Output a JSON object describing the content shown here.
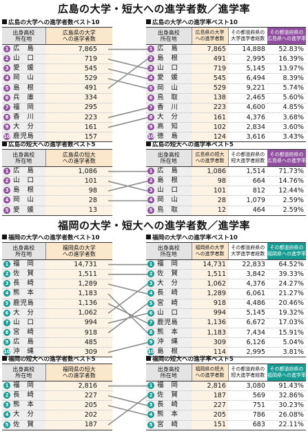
{
  "colors": {
    "hiroshima": "#8f4f9e",
    "fukuoka": "#169a92",
    "header_highlight": "#fbe8cc"
  },
  "hiroshima": {
    "title": "広島の大学・短大への進学者数／進学率",
    "univ_count": {
      "title": "広島の大学への進学者数ベスト10",
      "headers": [
        "出身高校\n所在地",
        "広島県の大学\nへの進学者数"
      ],
      "rows": [
        {
          "n": "1",
          "pref": "広島",
          "count": "7,865"
        },
        {
          "n": "2",
          "pref": "山口",
          "count": "719"
        },
        {
          "n": "3",
          "pref": "愛媛",
          "count": "545"
        },
        {
          "n": "4",
          "pref": "岡山",
          "count": "529"
        },
        {
          "n": "5",
          "pref": "島根",
          "count": "491"
        },
        {
          "n": "6",
          "pref": "兵庫",
          "count": "334"
        },
        {
          "n": "7",
          "pref": "福岡",
          "count": "295"
        },
        {
          "n": "8",
          "pref": "香川",
          "count": "223"
        },
        {
          "n": "9",
          "pref": "大分",
          "count": "161"
        },
        {
          "n": "10",
          "pref": "鹿児島",
          "count": "157"
        }
      ]
    },
    "univ_rate": {
      "title": "広島の大学への進学率ベスト10",
      "headers": [
        "出身高校\n所在地",
        "広島県の大学\nへの進学者数",
        "その都道府県の\n大学進学者総数",
        "その都道府県の\n広島県への進学率"
      ],
      "rows": [
        {
          "n": "1",
          "pref": "広島",
          "count": "7,865",
          "total": "14,888",
          "rate": "52.83%"
        },
        {
          "n": "2",
          "pref": "島根",
          "count": "491",
          "total": "2,995",
          "rate": "16.39%"
        },
        {
          "n": "3",
          "pref": "山口",
          "count": "719",
          "total": "5,145",
          "rate": "13.97%"
        },
        {
          "n": "4",
          "pref": "愛媛",
          "count": "545",
          "total": "6,494",
          "rate": "8.39%"
        },
        {
          "n": "5",
          "pref": "岡山",
          "count": "529",
          "total": "9,221",
          "rate": "5.74%"
        },
        {
          "n": "6",
          "pref": "鳥取",
          "count": "138",
          "total": "2,465",
          "rate": "5.60%"
        },
        {
          "n": "7",
          "pref": "香川",
          "count": "223",
          "total": "4,600",
          "rate": "4.85%"
        },
        {
          "n": "8",
          "pref": "大分",
          "count": "161",
          "total": "4,376",
          "rate": "3.68%"
        },
        {
          "n": "9",
          "pref": "高知",
          "count": "102",
          "total": "2,834",
          "rate": "3.60%"
        },
        {
          "n": "10",
          "pref": "徳島",
          "count": "124",
          "total": "3,616",
          "rate": "3.43%"
        }
      ]
    },
    "junior_count": {
      "title": "広島の短大への進学者数ベスト5",
      "headers": [
        "出身高校\n所在地",
        "広島県の短大\nへの進学者数"
      ],
      "rows": [
        {
          "n": "1",
          "pref": "広島",
          "count": "1,086"
        },
        {
          "n": "2",
          "pref": "山口",
          "count": "101"
        },
        {
          "n": "3",
          "pref": "島根",
          "count": "98"
        },
        {
          "n": "4",
          "pref": "岡山",
          "count": "28"
        },
        {
          "n": "5",
          "pref": "愛媛",
          "count": "13"
        }
      ]
    },
    "junior_rate": {
      "title": "広島の短大への進学率ベスト5",
      "headers": [
        "出身高校\n所在地",
        "広島県の短大\nへの進学者数",
        "その都道府県の\n短大進学者総数",
        "その都道府県の\n広島県への進学率"
      ],
      "rows": [
        {
          "n": "1",
          "pref": "広島",
          "count": "1,086",
          "total": "1,514",
          "rate": "71.73%"
        },
        {
          "n": "2",
          "pref": "島根",
          "count": "98",
          "total": "664",
          "rate": "14.76%"
        },
        {
          "n": "3",
          "pref": "山口",
          "count": "101",
          "total": "812",
          "rate": "12.44%"
        },
        {
          "n": "4",
          "pref": "岡山",
          "count": "28",
          "total": "1,079",
          "rate": "2.59%"
        },
        {
          "n": "5",
          "pref": "鳥取",
          "count": "12",
          "total": "464",
          "rate": "2.59%"
        }
      ]
    }
  },
  "fukuoka": {
    "title": "福岡の大学・短大への進学者数／進学率",
    "univ_count": {
      "title": "福岡の大学への進学者数ベスト10",
      "headers": [
        "出身高校\n所在地",
        "福岡県の大学\nへの進学者数"
      ],
      "rows": [
        {
          "n": "1",
          "pref": "福岡",
          "count": "14,731"
        },
        {
          "n": "2",
          "pref": "佐賀",
          "count": "1,511"
        },
        {
          "n": "3",
          "pref": "長崎",
          "count": "1,289"
        },
        {
          "n": "4",
          "pref": "熊本",
          "count": "1,183"
        },
        {
          "n": "5",
          "pref": "鹿児島",
          "count": "1,136"
        },
        {
          "n": "6",
          "pref": "大分",
          "count": "1,062"
        },
        {
          "n": "7",
          "pref": "山口",
          "count": "994"
        },
        {
          "n": "8",
          "pref": "宮崎",
          "count": "918"
        },
        {
          "n": "9",
          "pref": "広島",
          "count": "485"
        },
        {
          "n": "10",
          "pref": "沖縄",
          "count": "309"
        }
      ]
    },
    "univ_rate": {
      "title": "福岡の大学への進学率ベスト10",
      "headers": [
        "出身高校\n所在地",
        "福岡県の大学\nへの進学者数",
        "その都道府県の\n大学進学者総数",
        "その都道府県の\n福岡県への進学率"
      ],
      "rows": [
        {
          "n": "1",
          "pref": "福岡",
          "count": "14,731",
          "total": "22,833",
          "rate": "64.52%"
        },
        {
          "n": "2",
          "pref": "佐賀",
          "count": "1,511",
          "total": "3,842",
          "rate": "39.33%"
        },
        {
          "n": "3",
          "pref": "大分",
          "count": "1,062",
          "total": "4,376",
          "rate": "24.27%"
        },
        {
          "n": "4",
          "pref": "長崎",
          "count": "1,289",
          "total": "6,061",
          "rate": "21.27%"
        },
        {
          "n": "5",
          "pref": "宮崎",
          "count": "918",
          "total": "4,486",
          "rate": "20.46%"
        },
        {
          "n": "6",
          "pref": "山口",
          "count": "994",
          "total": "5,145",
          "rate": "19.32%"
        },
        {
          "n": "7",
          "pref": "鹿児島",
          "count": "1,136",
          "total": "6,672",
          "rate": "17.03%"
        },
        {
          "n": "8",
          "pref": "熊本",
          "count": "1,183",
          "total": "7,434",
          "rate": "15.91%"
        },
        {
          "n": "9",
          "pref": "沖縄",
          "count": "309",
          "total": "6,126",
          "rate": "5.04%"
        },
        {
          "n": "10",
          "pref": "島根",
          "count": "114",
          "total": "2,995",
          "rate": "3.81%"
        }
      ]
    },
    "junior_count": {
      "title": "福岡の短大への進学者数ベスト5",
      "headers": [
        "出身高校\n所在地",
        "福岡県の短大\nへの進学者数"
      ],
      "rows": [
        {
          "n": "1",
          "pref": "福岡",
          "count": "2,816"
        },
        {
          "n": "2",
          "pref": "長崎",
          "count": "227"
        },
        {
          "n": "3",
          "pref": "熊本",
          "count": "205"
        },
        {
          "n": "4",
          "pref": "大分",
          "count": "202"
        },
        {
          "n": "5",
          "pref": "佐賀",
          "count": "187"
        }
      ]
    },
    "junior_rate": {
      "title": "福岡の短大への進学率ベスト5",
      "headers": [
        "出身高校\n所在地",
        "福岡県の短大\nへの進学者数",
        "その都道府県の\n短大進学者総数",
        "その都道府県の\n福岡県への進学率"
      ],
      "rows": [
        {
          "n": "1",
          "pref": "福岡",
          "count": "2,816",
          "total": "3,080",
          "rate": "91.43%"
        },
        {
          "n": "2",
          "pref": "佐賀",
          "count": "187",
          "total": "569",
          "rate": "32.86%"
        },
        {
          "n": "3",
          "pref": "長崎",
          "count": "227",
          "total": "751",
          "rate": "30.23%"
        },
        {
          "n": "4",
          "pref": "熊本",
          "count": "205",
          "total": "786",
          "rate": "26.08%"
        },
        {
          "n": "5",
          "pref": "宮崎",
          "count": "151",
          "total": "683",
          "rate": "22.11%"
        }
      ]
    }
  }
}
